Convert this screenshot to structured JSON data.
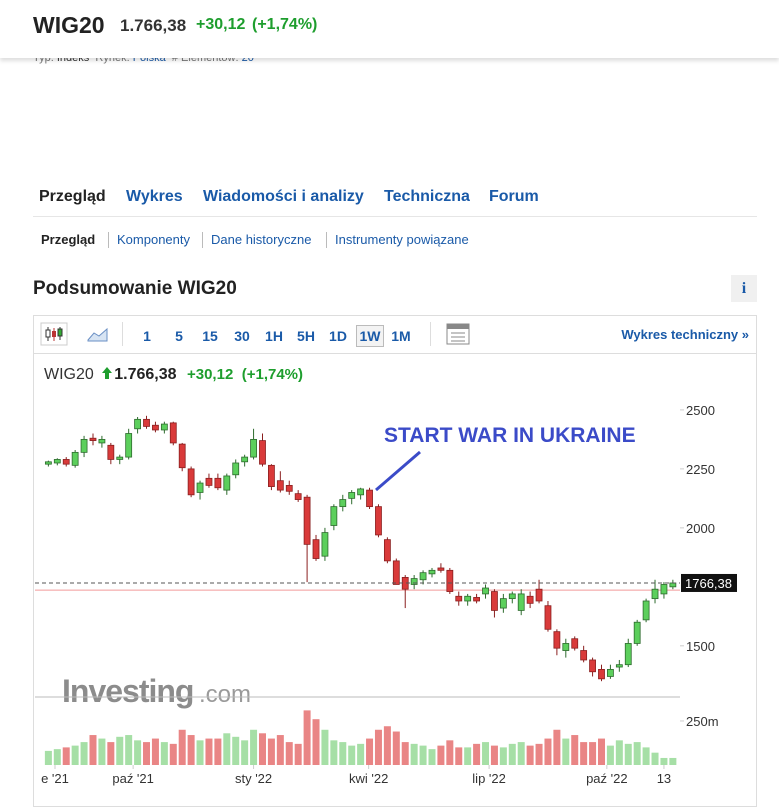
{
  "header": {
    "symbol": "WIG20",
    "price": "1.766,38",
    "change": "+30,12",
    "change_pct": "(+1,74%)",
    "meta": [
      "Typ:",
      "Indeks",
      "Rynek:",
      "Polska",
      "# Elementów:",
      "20"
    ]
  },
  "tabs": [
    "Przegląd",
    "Wykres",
    "Wiadomości i analizy",
    "Techniczna",
    "Forum"
  ],
  "subtabs": [
    "Przegląd",
    "Komponenty",
    "Dane historyczne",
    "Instrumenty powiązane"
  ],
  "section": {
    "title": "Podsumowanie WIG20",
    "info": "i"
  },
  "toolbar": {
    "intervals": [
      "1",
      "5",
      "15",
      "30",
      "1H",
      "5H",
      "1D",
      "1W",
      "1M"
    ],
    "selected_index": 7,
    "link": "Wykres techniczny »"
  },
  "chart": {
    "type": "candlestick",
    "symbol": "WIG20",
    "price": "1.766,38",
    "change": "+30,12",
    "change_pct": "(+1,74%)",
    "annotation": "START WAR IN UKRAINE",
    "watermark": [
      "Investing",
      ".com"
    ],
    "up_color": "#5ccf5c",
    "down_color": "#d93a3a",
    "up_volume_color": "#a6dfa6",
    "down_volume_color": "#e98585",
    "xlim": [
      -1.5,
      70.8
    ],
    "ylim": [
      1283,
      2542
    ],
    "yticks": [
      1500,
      2000,
      2250,
      2500
    ],
    "xticks": [
      {
        "value": 0.74,
        "label": "e '21"
      },
      {
        "value": 9.5,
        "label": "paź '21"
      },
      {
        "value": 23.0,
        "label": "sty '22"
      },
      {
        "value": 35.9,
        "label": "kwi '22"
      },
      {
        "value": 49.4,
        "label": "lip '22"
      },
      {
        "value": 62.6,
        "label": "paź '22"
      },
      {
        "value": 69.0,
        "label": "13"
      }
    ],
    "last_price": {
      "value": 1766.38,
      "label": "1766,38"
    },
    "reference_line": 1736.26,
    "volume_ylim": [
      0,
      386
    ],
    "volume_ticks": [
      {
        "value": 250,
        "label": "250m"
      }
    ],
    "candles": [
      {
        "open": 2270,
        "high": 2285,
        "low": 2260,
        "close": 2280,
        "volume": 80
      },
      {
        "open": 2275,
        "high": 2295,
        "low": 2265,
        "close": 2290,
        "volume": 90
      },
      {
        "open": 2290,
        "high": 2300,
        "low": 2260,
        "close": 2270,
        "volume": 100
      },
      {
        "open": 2265,
        "high": 2330,
        "low": 2255,
        "close": 2320,
        "volume": 110
      },
      {
        "open": 2320,
        "high": 2390,
        "low": 2300,
        "close": 2375,
        "volume": 130
      },
      {
        "open": 2380,
        "high": 2400,
        "low": 2350,
        "close": 2370,
        "volume": 170
      },
      {
        "open": 2360,
        "high": 2390,
        "low": 2340,
        "close": 2375,
        "volume": 150
      },
      {
        "open": 2350,
        "high": 2360,
        "low": 2270,
        "close": 2290,
        "volume": 130
      },
      {
        "open": 2290,
        "high": 2310,
        "low": 2270,
        "close": 2300,
        "volume": 160
      },
      {
        "open": 2300,
        "high": 2420,
        "low": 2290,
        "close": 2400,
        "volume": 170
      },
      {
        "open": 2420,
        "high": 2470,
        "low": 2400,
        "close": 2460,
        "volume": 140
      },
      {
        "open": 2460,
        "high": 2475,
        "low": 2420,
        "close": 2430,
        "volume": 130
      },
      {
        "open": 2435,
        "high": 2450,
        "low": 2405,
        "close": 2415,
        "volume": 150
      },
      {
        "open": 2415,
        "high": 2450,
        "low": 2400,
        "close": 2440,
        "volume": 130
      },
      {
        "open": 2445,
        "high": 2450,
        "low": 2350,
        "close": 2360,
        "volume": 120
      },
      {
        "open": 2355,
        "high": 2360,
        "low": 2240,
        "close": 2255,
        "volume": 200
      },
      {
        "open": 2250,
        "high": 2260,
        "low": 2130,
        "close": 2140,
        "volume": 170
      },
      {
        "open": 2150,
        "high": 2200,
        "low": 2120,
        "close": 2190,
        "volume": 140
      },
      {
        "open": 2210,
        "high": 2230,
        "low": 2170,
        "close": 2180,
        "volume": 150
      },
      {
        "open": 2210,
        "high": 2230,
        "low": 2160,
        "close": 2170,
        "volume": 150
      },
      {
        "open": 2160,
        "high": 2230,
        "low": 2140,
        "close": 2220,
        "volume": 180
      },
      {
        "open": 2225,
        "high": 2290,
        "low": 2210,
        "close": 2275,
        "volume": 160
      },
      {
        "open": 2280,
        "high": 2310,
        "low": 2260,
        "close": 2300,
        "volume": 140
      },
      {
        "open": 2300,
        "high": 2420,
        "low": 2290,
        "close": 2375,
        "volume": 200
      },
      {
        "open": 2370,
        "high": 2400,
        "low": 2260,
        "close": 2270,
        "volume": 180
      },
      {
        "open": 2265,
        "high": 2270,
        "low": 2160,
        "close": 2175,
        "volume": 150
      },
      {
        "open": 2200,
        "high": 2240,
        "low": 2150,
        "close": 2160,
        "volume": 170
      },
      {
        "open": 2180,
        "high": 2200,
        "low": 2140,
        "close": 2155,
        "volume": 130
      },
      {
        "open": 2145,
        "high": 2160,
        "low": 2110,
        "close": 2120,
        "volume": 120
      },
      {
        "open": 2130,
        "high": 2140,
        "low": 1770,
        "close": 1930,
        "volume": 310
      },
      {
        "open": 1950,
        "high": 1970,
        "low": 1860,
        "close": 1870,
        "volume": 260
      },
      {
        "open": 1880,
        "high": 2000,
        "low": 1860,
        "close": 1980,
        "volume": 200
      },
      {
        "open": 2010,
        "high": 2100,
        "low": 1990,
        "close": 2090,
        "volume": 140
      },
      {
        "open": 2090,
        "high": 2140,
        "low": 2070,
        "close": 2120,
        "volume": 130
      },
      {
        "open": 2125,
        "high": 2160,
        "low": 2100,
        "close": 2150,
        "volume": 110
      },
      {
        "open": 2140,
        "high": 2170,
        "low": 2120,
        "close": 2165,
        "volume": 120
      },
      {
        "open": 2160,
        "high": 2170,
        "low": 2080,
        "close": 2090,
        "volume": 150
      },
      {
        "open": 2090,
        "high": 2100,
        "low": 1960,
        "close": 1970,
        "volume": 200
      },
      {
        "open": 1950,
        "high": 1960,
        "low": 1850,
        "close": 1860,
        "volume": 220
      },
      {
        "open": 1860,
        "high": 1870,
        "low": 1770,
        "close": 1760,
        "volume": 190
      },
      {
        "open": 1790,
        "high": 1800,
        "low": 1660,
        "close": 1740,
        "volume": 130
      },
      {
        "open": 1760,
        "high": 1800,
        "low": 1740,
        "close": 1785,
        "volume": 120
      },
      {
        "open": 1780,
        "high": 1820,
        "low": 1760,
        "close": 1810,
        "volume": 110
      },
      {
        "open": 1805,
        "high": 1830,
        "low": 1790,
        "close": 1820,
        "volume": 90
      },
      {
        "open": 1830,
        "high": 1850,
        "low": 1810,
        "close": 1820,
        "volume": 110
      },
      {
        "open": 1820,
        "high": 1830,
        "low": 1720,
        "close": 1730,
        "volume": 140
      },
      {
        "open": 1710,
        "high": 1730,
        "low": 1670,
        "close": 1690,
        "volume": 100
      },
      {
        "open": 1690,
        "high": 1720,
        "low": 1670,
        "close": 1710,
        "volume": 100
      },
      {
        "open": 1705,
        "high": 1720,
        "low": 1680,
        "close": 1690,
        "volume": 120
      },
      {
        "open": 1720,
        "high": 1760,
        "low": 1700,
        "close": 1745,
        "volume": 130
      },
      {
        "open": 1730,
        "high": 1740,
        "low": 1620,
        "close": 1650,
        "volume": 110
      },
      {
        "open": 1660,
        "high": 1720,
        "low": 1640,
        "close": 1700,
        "volume": 100
      },
      {
        "open": 1700,
        "high": 1730,
        "low": 1680,
        "close": 1720,
        "volume": 120
      },
      {
        "open": 1650,
        "high": 1740,
        "low": 1630,
        "close": 1720,
        "volume": 130
      },
      {
        "open": 1710,
        "high": 1730,
        "low": 1660,
        "close": 1680,
        "volume": 110
      },
      {
        "open": 1740,
        "high": 1780,
        "low": 1680,
        "close": 1690,
        "volume": 120
      },
      {
        "open": 1670,
        "high": 1690,
        "low": 1560,
        "close": 1570,
        "volume": 150
      },
      {
        "open": 1560,
        "high": 1570,
        "low": 1460,
        "close": 1490,
        "volume": 200
      },
      {
        "open": 1480,
        "high": 1530,
        "low": 1450,
        "close": 1510,
        "volume": 150
      },
      {
        "open": 1530,
        "high": 1540,
        "low": 1480,
        "close": 1490,
        "volume": 170
      },
      {
        "open": 1480,
        "high": 1500,
        "low": 1430,
        "close": 1440,
        "volume": 130
      },
      {
        "open": 1440,
        "high": 1450,
        "low": 1370,
        "close": 1390,
        "volume": 130
      },
      {
        "open": 1400,
        "high": 1420,
        "low": 1350,
        "close": 1360,
        "volume": 150
      },
      {
        "open": 1370,
        "high": 1420,
        "low": 1360,
        "close": 1400,
        "volume": 110
      },
      {
        "open": 1410,
        "high": 1440,
        "low": 1390,
        "close": 1420,
        "volume": 140
      },
      {
        "open": 1420,
        "high": 1530,
        "low": 1410,
        "close": 1510,
        "volume": 120
      },
      {
        "open": 1510,
        "high": 1610,
        "low": 1500,
        "close": 1600,
        "volume": 130
      },
      {
        "open": 1610,
        "high": 1700,
        "low": 1600,
        "close": 1690,
        "volume": 100
      },
      {
        "open": 1700,
        "high": 1780,
        "low": 1680,
        "close": 1740,
        "volume": 70
      },
      {
        "open": 1720,
        "high": 1770,
        "low": 1700,
        "close": 1760,
        "volume": 40
      },
      {
        "open": 1750,
        "high": 1780,
        "low": 1740,
        "close": 1766.38,
        "volume": 40
      }
    ]
  }
}
